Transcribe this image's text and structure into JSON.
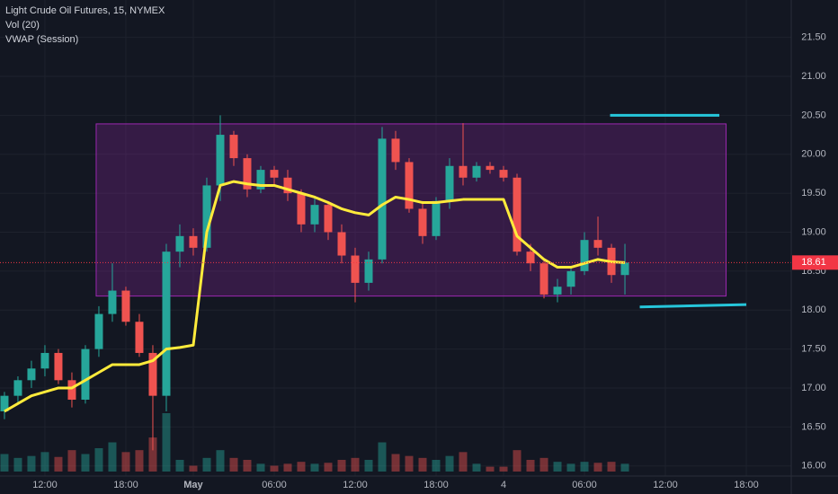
{
  "chart_data": {
    "type": "candlestick",
    "title": "Light Crude Oil Futures, 15, NYMEX",
    "indicators": [
      "Vol (20)",
      "VWAP (Session)"
    ],
    "x": [
      -3,
      -2,
      -1,
      0,
      1,
      2,
      3,
      4,
      5,
      6,
      7,
      8,
      9,
      10,
      11,
      12,
      13,
      14,
      15,
      16,
      17,
      18,
      19,
      20,
      21,
      22,
      23,
      24,
      25,
      26,
      27,
      28,
      29,
      30,
      31,
      32,
      33,
      34,
      35,
      36,
      37,
      38,
      39,
      40,
      41,
      42,
      43
    ],
    "open": [
      16.7,
      16.9,
      17.1,
      17.25,
      17.45,
      17.1,
      16.85,
      17.5,
      17.95,
      18.25,
      17.85,
      17.45,
      16.9,
      18.75,
      18.95,
      18.8,
      19.6,
      20.25,
      19.95,
      19.55,
      19.8,
      19.7,
      19.5,
      19.1,
      19.35,
      19.0,
      18.7,
      18.35,
      18.65,
      20.2,
      19.9,
      19.3,
      18.95,
      19.4,
      19.85,
      19.7,
      19.85,
      19.8,
      19.7,
      18.75,
      18.6,
      18.2,
      18.3,
      18.5,
      18.9,
      18.8,
      18.45
    ],
    "high": [
      16.95,
      17.15,
      17.35,
      17.55,
      17.5,
      17.2,
      17.55,
      18.05,
      18.6,
      18.3,
      17.95,
      17.55,
      18.85,
      19.1,
      19.05,
      19.7,
      20.5,
      20.3,
      20.0,
      19.85,
      19.85,
      19.8,
      19.55,
      19.45,
      19.4,
      19.1,
      18.8,
      18.75,
      20.35,
      20.3,
      19.95,
      19.4,
      19.45,
      19.95,
      20.4,
      19.9,
      19.9,
      19.85,
      19.75,
      18.85,
      18.65,
      18.4,
      18.55,
      19.0,
      19.2,
      18.85,
      18.85
    ],
    "low": [
      16.6,
      16.8,
      17.0,
      17.15,
      17.05,
      16.75,
      16.8,
      17.4,
      17.85,
      17.8,
      17.4,
      16.2,
      16.7,
      18.55,
      18.7,
      18.75,
      19.4,
      19.85,
      19.45,
      19.5,
      19.6,
      19.4,
      19.0,
      19.0,
      18.9,
      18.6,
      18.1,
      18.25,
      18.6,
      19.8,
      19.25,
      18.85,
      18.9,
      19.3,
      19.6,
      19.65,
      19.75,
      19.65,
      18.7,
      18.5,
      18.15,
      18.1,
      18.2,
      18.45,
      18.7,
      18.35,
      18.2
    ],
    "close": [
      16.9,
      17.1,
      17.25,
      17.45,
      17.1,
      16.85,
      17.5,
      17.95,
      18.25,
      17.85,
      17.45,
      16.9,
      18.75,
      18.95,
      18.8,
      19.6,
      20.25,
      19.95,
      19.55,
      19.8,
      19.7,
      19.5,
      19.1,
      19.35,
      19.0,
      18.7,
      18.35,
      18.65,
      20.2,
      19.9,
      19.3,
      18.95,
      19.4,
      19.85,
      19.7,
      19.85,
      19.8,
      19.7,
      18.75,
      18.6,
      18.2,
      18.3,
      18.5,
      18.9,
      18.8,
      18.45,
      18.61
    ],
    "volume": [
      18,
      14,
      16,
      20,
      15,
      22,
      18,
      24,
      30,
      20,
      22,
      35,
      60,
      12,
      6,
      14,
      22,
      14,
      12,
      8,
      6,
      8,
      10,
      8,
      9,
      12,
      14,
      12,
      30,
      18,
      16,
      14,
      12,
      16,
      20,
      8,
      5,
      5,
      22,
      12,
      14,
      10,
      8,
      10,
      9,
      10,
      8
    ],
    "vwap": [
      16.7,
      16.8,
      16.9,
      16.95,
      17.0,
      17.0,
      17.1,
      17.2,
      17.3,
      17.3,
      17.3,
      17.35,
      17.5,
      17.52,
      17.55,
      19.0,
      19.6,
      19.65,
      19.62,
      19.6,
      19.6,
      19.55,
      19.5,
      19.45,
      19.38,
      19.3,
      19.25,
      19.22,
      19.35,
      19.45,
      19.42,
      19.38,
      19.38,
      19.4,
      19.42,
      19.42,
      19.42,
      19.42,
      18.95,
      18.8,
      18.65,
      18.55,
      18.55,
      18.6,
      18.65,
      18.62,
      18.61
    ],
    "colors": {
      "up": "#26a69a",
      "down": "#ef5350",
      "vwap": "#ffeb3b",
      "rectangle": "#9c27b0",
      "lines": "#26c6da",
      "last": "#f23645"
    },
    "last_price": 18.61,
    "rectangle": {
      "x": [
        3.8,
        50.5
      ],
      "y": [
        18.18,
        20.39
      ]
    },
    "lines": [
      {
        "x": [
          41.9,
          50
        ],
        "y": [
          20.5,
          20.5
        ]
      },
      {
        "x": [
          44.1,
          52
        ],
        "y": [
          18.04,
          18.07
        ]
      }
    ],
    "xlim": [
      -3.33,
      55.33
    ],
    "xticks": [
      {
        "value": 0,
        "label": "12:00"
      },
      {
        "value": 6,
        "label": "18:00"
      },
      {
        "value": 11,
        "label": "May"
      },
      {
        "value": 17,
        "label": "06:00"
      },
      {
        "value": 23,
        "label": "12:00"
      },
      {
        "value": 29,
        "label": "18:00"
      },
      {
        "value": 34,
        "label": "4"
      },
      {
        "value": 40,
        "label": "06:00"
      },
      {
        "value": 46,
        "label": "12:00"
      },
      {
        "value": 52,
        "label": "18:00"
      }
    ],
    "ylim": [
      15.87,
      21.98
    ],
    "yticks": [
      {
        "value": 16,
        "label": "16.00"
      },
      {
        "value": 16.5,
        "label": "16.50"
      },
      {
        "value": 17,
        "label": "17.00"
      },
      {
        "value": 17.5,
        "label": "17.50"
      },
      {
        "value": 18,
        "label": "18.00"
      },
      {
        "value": 18.5,
        "label": "18.50"
      },
      {
        "value": 19,
        "label": "19.00"
      },
      {
        "value": 19.5,
        "label": "19.50"
      },
      {
        "value": 20,
        "label": "20.00"
      },
      {
        "value": 20.5,
        "label": "20.50"
      },
      {
        "value": 21,
        "label": "21.00"
      },
      {
        "value": 21.5,
        "label": "21.50"
      }
    ],
    "grid": true
  }
}
